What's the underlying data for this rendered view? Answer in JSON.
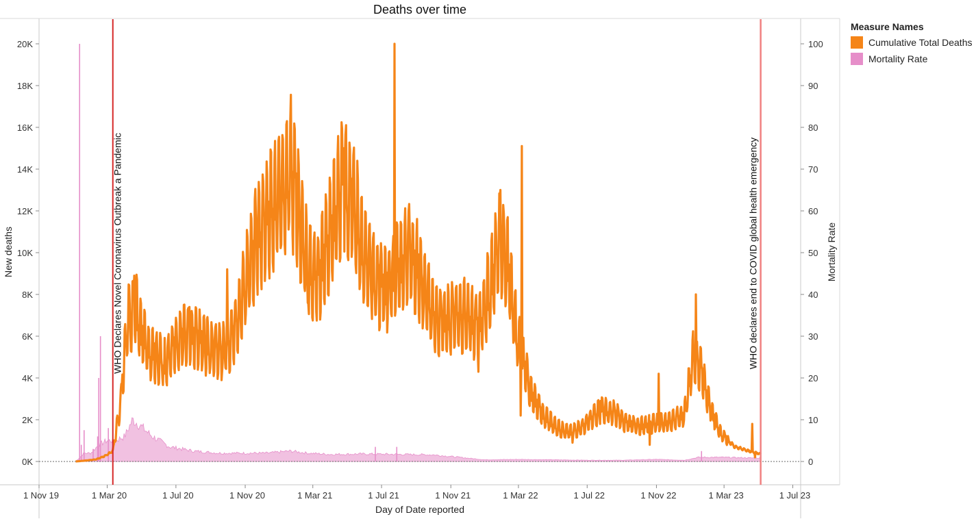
{
  "chart_data": {
    "type": "line+bar (dual axis)",
    "title": "Deaths over time",
    "xlabel": "Day of Date reported",
    "ylabel_left": "New deaths",
    "ylabel_right": "Mortality Rate",
    "x_ticks": [
      "1 Nov 19",
      "1 Mar 20",
      "1 Jul 20",
      "1 Nov 20",
      "1 Mar 21",
      "1 Jul 21",
      "1 Nov 21",
      "1 Mar 22",
      "1 Jul 22",
      "1 Nov 22",
      "1 Mar 23",
      "1 Jul 23"
    ],
    "y_left_ticks": [
      "0K",
      "2K",
      "4K",
      "6K",
      "8K",
      "10K",
      "12K",
      "14K",
      "16K",
      "18K",
      "20K"
    ],
    "y_right_ticks": [
      "0",
      "10",
      "20",
      "30",
      "40",
      "50",
      "60",
      "70",
      "80",
      "90",
      "100"
    ],
    "ylim_left": [
      0,
      21000
    ],
    "ylim_right": [
      0,
      105
    ],
    "xlim": [
      "2019-11-01",
      "2023-07-15"
    ],
    "legend": {
      "title": "Measure Names",
      "position": "top-right",
      "items": [
        {
          "label": "Cumulative Total Deaths",
          "color": "#f58518"
        },
        {
          "label": "Mortality Rate",
          "color": "#e68ec9"
        }
      ]
    },
    "annotations": [
      {
        "date": "2020-03-11",
        "text": "WHO Declares Novel Coronavirus Outbreak a Pandemic",
        "color": "#d62728"
      },
      {
        "date": "2023-05-05",
        "text": "WHO declares end to COVID global health emergency",
        "color": "#f08080"
      }
    ],
    "series": [
      {
        "name": "Cumulative Total Deaths",
        "axis": "left",
        "color": "#f58518",
        "baseline_points": [
          [
            "2020-01-05",
            0
          ],
          [
            "2020-01-25",
            50
          ],
          [
            "2020-02-10",
            100
          ],
          [
            "2020-02-25",
            250
          ],
          [
            "2020-03-11",
            500
          ],
          [
            "2020-03-25",
            2800
          ],
          [
            "2020-04-05",
            6500
          ],
          [
            "2020-04-18",
            7500
          ],
          [
            "2020-05-01",
            6200
          ],
          [
            "2020-05-15",
            5300
          ],
          [
            "2020-06-01",
            4900
          ],
          [
            "2020-06-15",
            4900
          ],
          [
            "2020-07-01",
            5600
          ],
          [
            "2020-07-20",
            6100
          ],
          [
            "2020-08-10",
            5800
          ],
          [
            "2020-09-01",
            5400
          ],
          [
            "2020-09-20",
            5200
          ],
          [
            "2020-10-10",
            5900
          ],
          [
            "2020-10-25",
            7700
          ],
          [
            "2020-11-05",
            9000
          ],
          [
            "2020-11-20",
            10500
          ],
          [
            "2020-12-10",
            11600
          ],
          [
            "2021-01-01",
            12600
          ],
          [
            "2021-01-20",
            14200
          ],
          [
            "2021-02-05",
            11500
          ],
          [
            "2021-02-20",
            9400
          ],
          [
            "2021-03-10",
            8800
          ],
          [
            "2021-04-01",
            11000
          ],
          [
            "2021-04-25",
            13300
          ],
          [
            "2021-05-10",
            12400
          ],
          [
            "2021-06-01",
            10100
          ],
          [
            "2021-06-20",
            8700
          ],
          [
            "2021-07-10",
            8200
          ],
          [
            "2021-08-01",
            9300
          ],
          [
            "2021-08-20",
            10000
          ],
          [
            "2021-09-10",
            8700
          ],
          [
            "2021-10-01",
            7000
          ],
          [
            "2021-10-20",
            6700
          ],
          [
            "2021-11-10",
            7000
          ],
          [
            "2021-12-01",
            7000
          ],
          [
            "2021-12-20",
            6300
          ],
          [
            "2022-01-10",
            8400
          ],
          [
            "2022-01-28",
            10500
          ],
          [
            "2022-02-10",
            9600
          ],
          [
            "2022-02-25",
            6300
          ],
          [
            "2022-03-10",
            4700
          ],
          [
            "2022-03-25",
            3200
          ],
          [
            "2022-04-15",
            2200
          ],
          [
            "2022-05-10",
            1600
          ],
          [
            "2022-06-01",
            1400
          ],
          [
            "2022-06-20",
            1600
          ],
          [
            "2022-07-10",
            2100
          ],
          [
            "2022-07-28",
            2500
          ],
          [
            "2022-08-20",
            2300
          ],
          [
            "2022-09-10",
            1800
          ],
          [
            "2022-10-01",
            1700
          ],
          [
            "2022-10-25",
            1800
          ],
          [
            "2022-11-20",
            1900
          ],
          [
            "2022-12-20",
            2200
          ],
          [
            "2023-01-05",
            5000
          ],
          [
            "2023-01-20",
            4300
          ],
          [
            "2023-02-05",
            2500
          ],
          [
            "2023-02-25",
            1300
          ],
          [
            "2023-03-20",
            700
          ],
          [
            "2023-04-15",
            500
          ],
          [
            "2023-05-05",
            350
          ]
        ],
        "peaks": [
          [
            "2020-04-18",
            8900
          ],
          [
            "2020-07-25",
            7400
          ],
          [
            "2020-08-25",
            6800
          ],
          [
            "2020-09-30",
            9200
          ],
          [
            "2021-01-20",
            16300
          ],
          [
            "2021-04-25",
            15000
          ],
          [
            "2021-07-24",
            20000
          ],
          [
            "2021-08-20",
            11100
          ],
          [
            "2021-11-25",
            8800
          ],
          [
            "2022-01-28",
            13000
          ],
          [
            "2022-03-07",
            15100
          ],
          [
            "2022-07-25",
            2900
          ],
          [
            "2022-11-05",
            4200
          ],
          [
            "2023-01-10",
            8000
          ],
          [
            "2023-04-20",
            1800
          ]
        ],
        "troughs": [
          [
            "2020-06-10",
            4200
          ],
          [
            "2021-02-20",
            7600
          ],
          [
            "2021-07-05",
            6800
          ],
          [
            "2021-12-20",
            4300
          ],
          [
            "2022-03-05",
            2200
          ],
          [
            "2022-06-05",
            900
          ],
          [
            "2022-10-20",
            800
          ],
          [
            "2023-04-25",
            200
          ]
        ]
      },
      {
        "name": "Mortality Rate",
        "axis": "right",
        "color": "#e68ec9",
        "baseline_points": [
          [
            "2020-01-05",
            0
          ],
          [
            "2020-01-20",
            2
          ],
          [
            "2020-02-01",
            2
          ],
          [
            "2020-02-15",
            4
          ],
          [
            "2020-03-01",
            5
          ],
          [
            "2020-03-15",
            5
          ],
          [
            "2020-04-01",
            6
          ],
          [
            "2020-04-15",
            10
          ],
          [
            "2020-04-25",
            9
          ],
          [
            "2020-05-20",
            6
          ],
          [
            "2020-06-20",
            3.5
          ],
          [
            "2020-08-01",
            2.5
          ],
          [
            "2020-09-15",
            2
          ],
          [
            "2020-11-01",
            2
          ],
          [
            "2020-12-10",
            2
          ],
          [
            "2021-01-20",
            2.5
          ],
          [
            "2021-02-20",
            2
          ],
          [
            "2021-04-01",
            1.7
          ],
          [
            "2021-06-01",
            1.8
          ],
          [
            "2021-08-01",
            1.7
          ],
          [
            "2021-10-01",
            1.6
          ],
          [
            "2021-12-01",
            0.8
          ],
          [
            "2022-01-01",
            0.4
          ],
          [
            "2022-03-01",
            0.5
          ],
          [
            "2022-05-01",
            0.4
          ],
          [
            "2022-07-01",
            0.3
          ],
          [
            "2022-09-01",
            0.3
          ],
          [
            "2022-11-01",
            0.5
          ],
          [
            "2022-12-20",
            0.3
          ],
          [
            "2023-01-15",
            1
          ],
          [
            "2023-03-01",
            1
          ],
          [
            "2023-05-05",
            0.8
          ]
        ],
        "spikes": [
          [
            "2020-01-12",
            100
          ],
          [
            "2020-01-15",
            4
          ],
          [
            "2020-01-20",
            7.5
          ],
          [
            "2020-02-05",
            3
          ],
          [
            "2020-02-13",
            6
          ],
          [
            "2020-02-15",
            20
          ],
          [
            "2020-02-18",
            30
          ],
          [
            "2020-03-03",
            8
          ],
          [
            "2021-06-20",
            3.5
          ],
          [
            "2021-07-28",
            3.5
          ],
          [
            "2023-01-20",
            2.5
          ]
        ]
      }
    ]
  }
}
